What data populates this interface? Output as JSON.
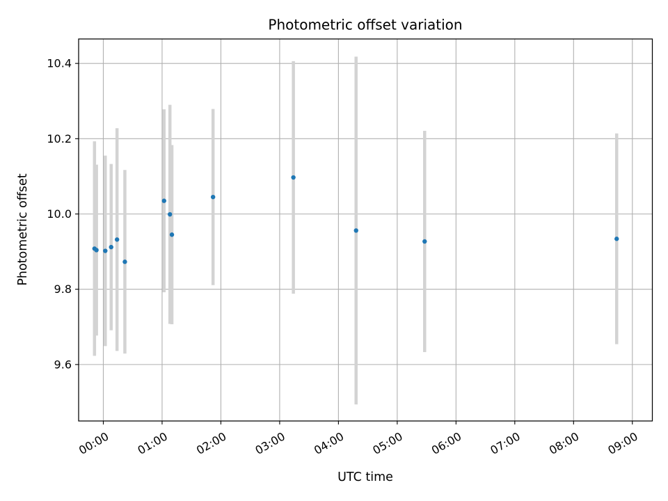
{
  "chart_data": {
    "type": "scatter",
    "title": "Photometric offset variation",
    "xlabel": "UTC time",
    "ylabel": "Photometric offset",
    "x_tick_labels": [
      "00:00",
      "01:00",
      "02:00",
      "03:00",
      "04:00",
      "05:00",
      "06:00",
      "07:00",
      "08:00",
      "09:00"
    ],
    "y_tick_labels": [
      "9.6",
      "9.8",
      "10.0",
      "10.2",
      "10.4"
    ],
    "x_ticks_hours": [
      0,
      1,
      2,
      3,
      4,
      5,
      6,
      7,
      8,
      9
    ],
    "y_ticks": [
      9.6,
      9.8,
      10.0,
      10.2,
      10.4
    ],
    "x_range_hours": [
      -0.42,
      9.34
    ],
    "y_range": [
      9.45,
      10.465
    ],
    "grid": true,
    "marker_color": "#1f77b4",
    "errorbar_color": "#d3d3d3",
    "points": [
      {
        "time": "23:51",
        "y": 9.908,
        "err": 0.285
      },
      {
        "time": "23:53",
        "y": 9.904,
        "err": 0.227
      },
      {
        "time": "00:02",
        "y": 9.902,
        "err": 0.253
      },
      {
        "time": "00:08",
        "y": 9.912,
        "err": 0.221
      },
      {
        "time": "00:14",
        "y": 9.932,
        "err": 0.296
      },
      {
        "time": "00:22",
        "y": 9.873,
        "err": 0.244
      },
      {
        "time": "01:02",
        "y": 10.035,
        "err": 0.243
      },
      {
        "time": "01:08",
        "y": 9.999,
        "err": 0.291
      },
      {
        "time": "01:10",
        "y": 9.945,
        "err": 0.238
      },
      {
        "time": "01:52",
        "y": 10.045,
        "err": 0.234
      },
      {
        "time": "03:14",
        "y": 10.097,
        "err": 0.309
      },
      {
        "time": "04:18",
        "y": 9.956,
        "err": 0.462
      },
      {
        "time": "05:28",
        "y": 9.927,
        "err": 0.294
      },
      {
        "time": "08:44",
        "y": 9.934,
        "err": 0.28
      }
    ]
  }
}
